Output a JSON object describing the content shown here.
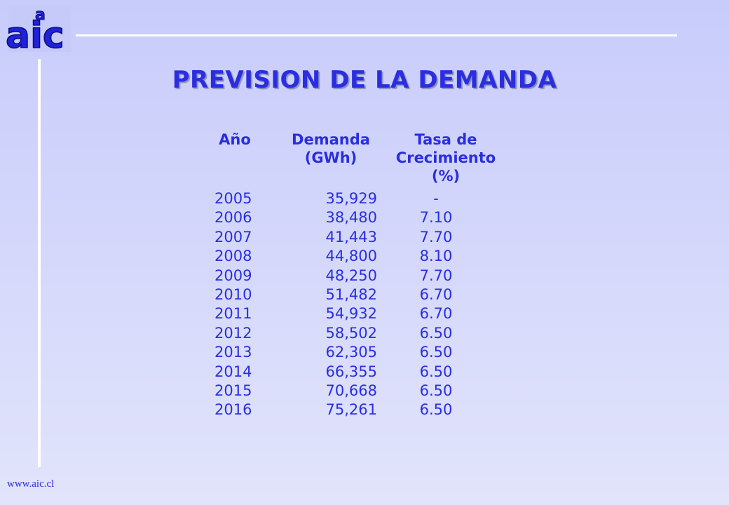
{
  "logo": {
    "text": "aic",
    "color": "#1f22d8"
  },
  "title": "PREVISION DE LA DEMANDA",
  "table": {
    "headers": {
      "year": "Año",
      "demand": "Demanda\n(GWh)",
      "rate": "Tasa de\nCrecimiento\n(%)"
    },
    "rows": [
      {
        "year": "2005",
        "demand": "35,929",
        "rate": "-"
      },
      {
        "year": "2006",
        "demand": "38,480",
        "rate": "7.10"
      },
      {
        "year": "2007",
        "demand": "41,443",
        "rate": "7.70"
      },
      {
        "year": "2008",
        "demand": "44,800",
        "rate": "8.10"
      },
      {
        "year": "2009",
        "demand": "48,250",
        "rate": "7.70"
      },
      {
        "year": "2010",
        "demand": "51,482",
        "rate": "6.70"
      },
      {
        "year": "2011",
        "demand": "54,932",
        "rate": "6.70"
      },
      {
        "year": "2012",
        "demand": "58,502",
        "rate": "6.50"
      },
      {
        "year": "2013",
        "demand": "62,305",
        "rate": "6.50"
      },
      {
        "year": "2014",
        "demand": "66,355",
        "rate": "6.50"
      },
      {
        "year": "2015",
        "demand": "70,668",
        "rate": "6.50"
      },
      {
        "year": "2016",
        "demand": "75,261",
        "rate": "6.50"
      }
    ]
  },
  "footer": "www.aic.cl"
}
